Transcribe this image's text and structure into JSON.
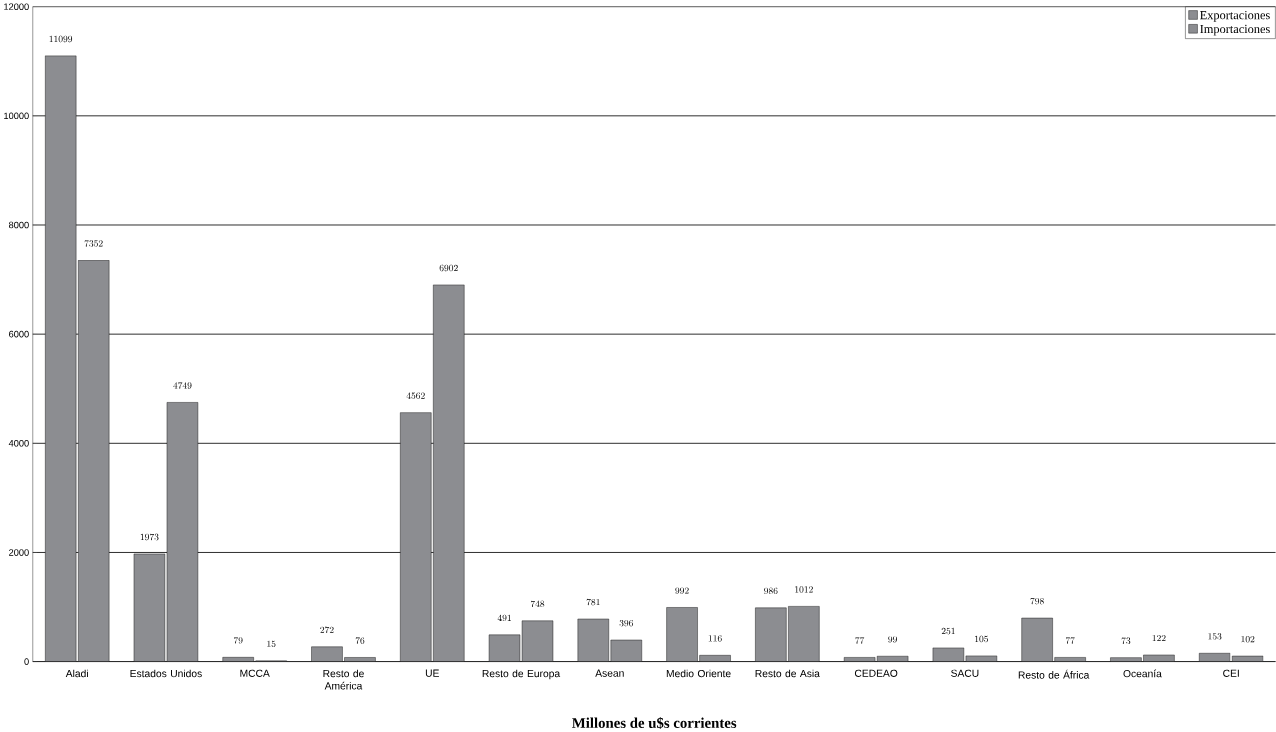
{
  "chart_data": {
    "type": "bar",
    "xlabel": "Millones de u$s corrientes",
    "categories": [
      "Aladi",
      "Estados Unidos",
      "MCCA",
      "Resto de América",
      "UE",
      "Resto de Europa",
      "Asean",
      "Medio Oriente",
      "Resto de Asia",
      "CEDEAO",
      "SACU",
      "Resto de África",
      "Oceanía",
      "CEI"
    ],
    "series": [
      {
        "name": "Exportaciones",
        "color": "#8c8d91",
        "values": [
          11099,
          1973,
          79,
          272,
          4562,
          491,
          781,
          992,
          986,
          77,
          251,
          798,
          73,
          153
        ]
      },
      {
        "name": "Importaciones",
        "color": "#8c8d91",
        "values": [
          7352,
          4749,
          15,
          76,
          6902,
          748,
          396,
          116,
          1012,
          99,
          105,
          77,
          122,
          102
        ]
      }
    ],
    "ylim": [
      0,
      12000
    ],
    "yticks": [
      0,
      2000,
      4000,
      6000,
      8000,
      10000,
      12000
    ],
    "grid": "y",
    "legend": "top right",
    "data_labels": true
  }
}
